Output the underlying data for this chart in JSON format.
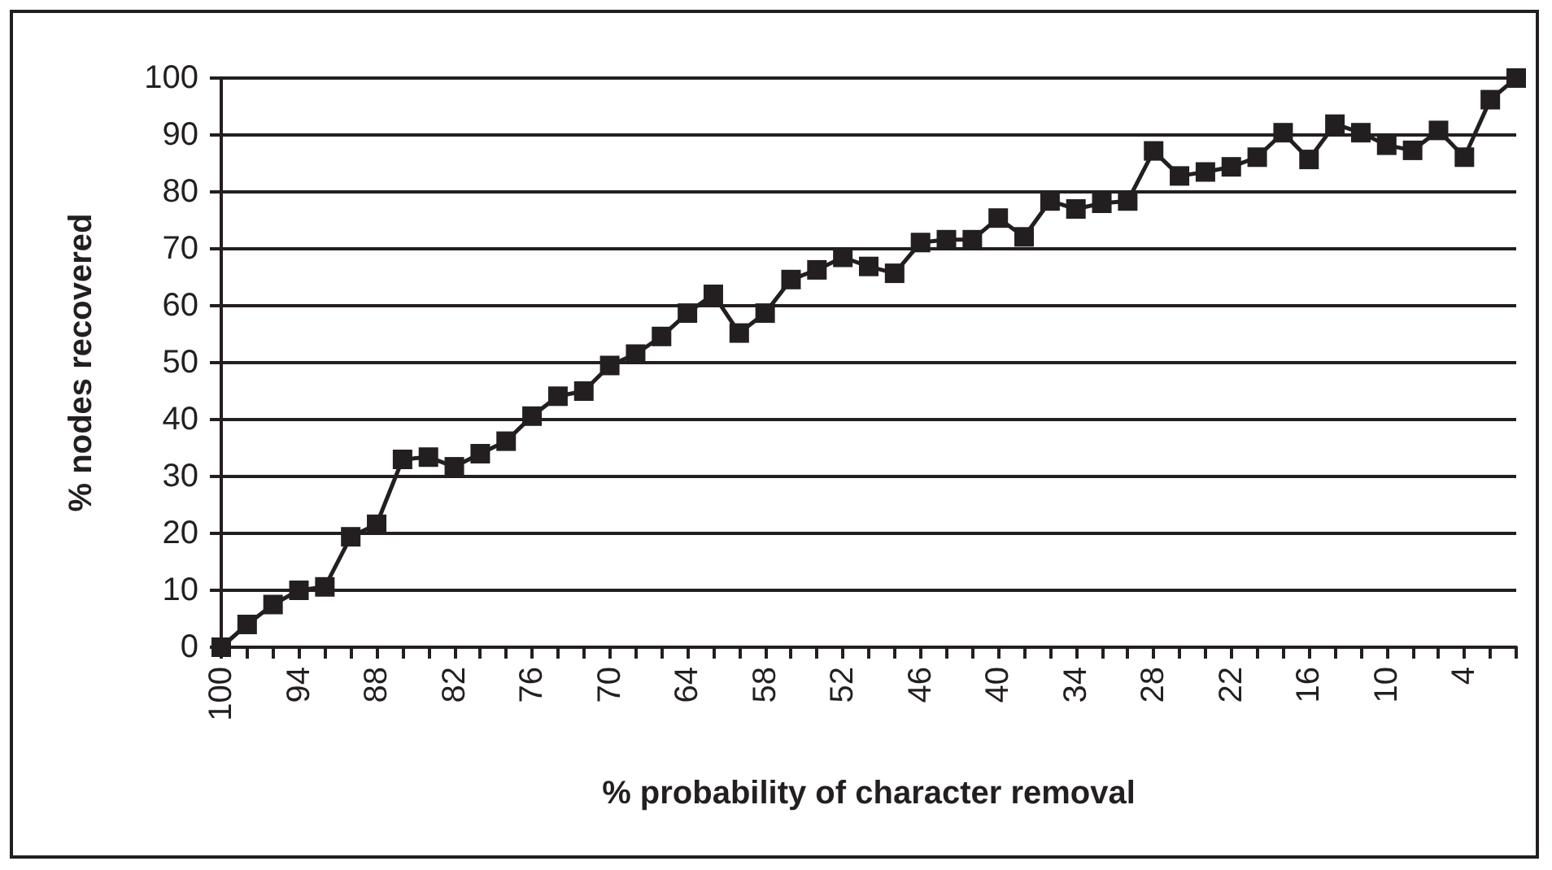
{
  "chart_data": {
    "type": "line",
    "xlabel": "% probability of character removal",
    "ylabel": "% nodes recovered",
    "categories": [
      "100",
      null,
      null,
      "94",
      null,
      null,
      "88",
      null,
      null,
      "82",
      null,
      null,
      "76",
      null,
      null,
      "70",
      null,
      null,
      "64",
      null,
      null,
      "58",
      null,
      null,
      "52",
      null,
      null,
      "46",
      null,
      null,
      "40",
      null,
      null,
      "34",
      null,
      null,
      "28",
      null,
      null,
      "22",
      null,
      null,
      "16",
      null,
      null,
      "10",
      null,
      null,
      "4",
      null,
      null
    ],
    "series": [
      {
        "color": "#231f20",
        "values": [
          0,
          4,
          7.5,
          10,
          10.6,
          19.4,
          21.6,
          33,
          33.4,
          31.7,
          34,
          36.2,
          40.6,
          44.1,
          45,
          49.5,
          51.5,
          54.6,
          58.7,
          62,
          55.2,
          58.7,
          64.6,
          66.3,
          68.5,
          66.9,
          65.7,
          71.1,
          71.6,
          71.6,
          75.4,
          72.1,
          78.4,
          77,
          78,
          78.4,
          87.2,
          82.8,
          83.5,
          84.4,
          86.1,
          90.4,
          85.7,
          91.9,
          90.4,
          88.2,
          87.3,
          90.8,
          86.1,
          96.2,
          100
        ]
      }
    ],
    "ylim": [
      0,
      100
    ],
    "yticks": [
      0,
      10,
      20,
      30,
      40,
      50,
      60,
      70,
      80,
      90,
      100
    ],
    "grid": "y",
    "marker": "square",
    "line_style": "solid"
  }
}
